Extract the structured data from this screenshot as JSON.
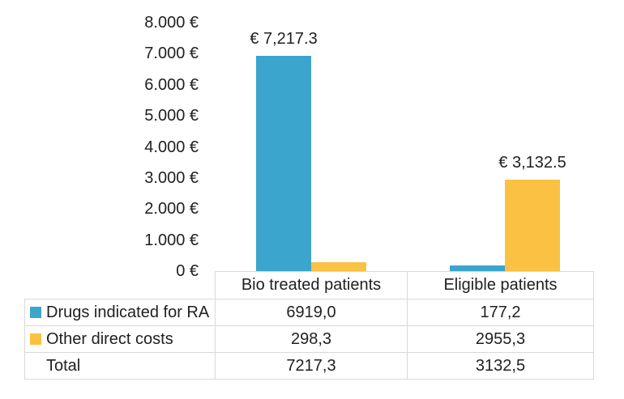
{
  "colors": {
    "blue": "#3BA5CD",
    "yellow": "#FAC143",
    "border": "#D9D9D9",
    "text": "#1F1F1F"
  },
  "chart_data": {
    "type": "bar",
    "title": "",
    "xlabel": "",
    "ylabel": "",
    "categories": [
      "Bio treated patients",
      "Eligible patients"
    ],
    "series": [
      {
        "name": "Drugs indicated for RA",
        "color_key": "blue",
        "values": [
          6919.0,
          177.2
        ]
      },
      {
        "name": "Other direct costs",
        "color_key": "yellow",
        "values": [
          298.3,
          2955.3
        ]
      }
    ],
    "totals": [
      7217.3,
      3132.5
    ],
    "ylim": [
      0,
      8000
    ],
    "ytick_labels": [
      "8.000 €",
      "7.000 €",
      "6.000 €",
      "5.000 €",
      "4.000 €",
      "3.000 €",
      "2.000 €",
      "1.000 €",
      "0 €"
    ],
    "bar_labels": [
      {
        "text": "€ 7,217.3",
        "category_index": 0,
        "series_index": 0
      },
      {
        "text": "€ 3,132.5",
        "category_index": 1,
        "series_index": 1
      }
    ],
    "grid": false,
    "legend_position": "table-left"
  },
  "table": {
    "column_headers": [
      "Bio treated patients",
      "Eligible patients"
    ],
    "rows": [
      {
        "label": "Drugs indicated for RA",
        "swatch": "blue",
        "values": [
          "6919,0",
          "177,2"
        ]
      },
      {
        "label": "Other direct costs",
        "swatch": "yellow",
        "values": [
          "298,3",
          "2955,3"
        ]
      },
      {
        "label": "Total",
        "swatch": "",
        "values": [
          "7217,3",
          "3132,5"
        ]
      }
    ]
  }
}
